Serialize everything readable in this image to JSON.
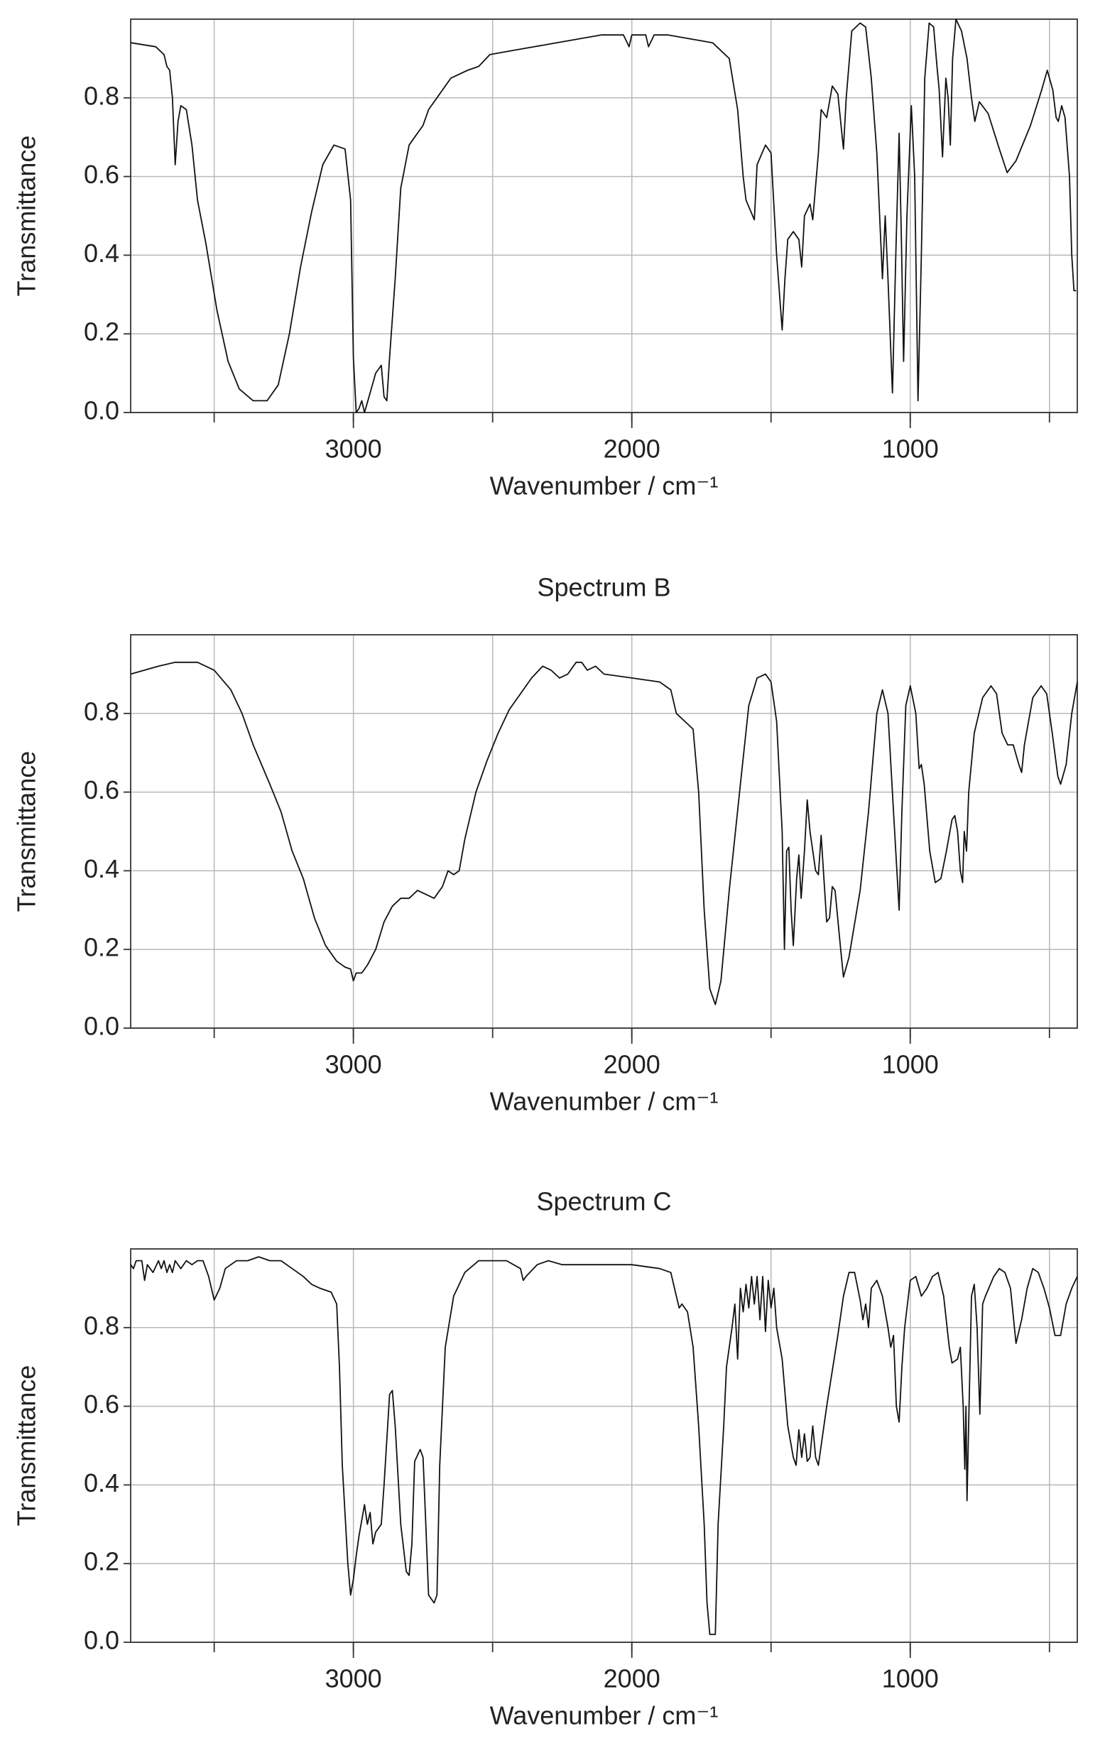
{
  "chart_data": [
    {
      "type": "line",
      "xlabel": "Wavenumber / cm⁻¹",
      "ylabel": "Transmittance",
      "color": "#111111",
      "grid": true,
      "xlim": [
        3800,
        400
      ],
      "ylim": [
        0,
        1
      ],
      "xticks": [
        3000,
        2000,
        1000
      ],
      "xgrid": [
        3500,
        3000,
        2500,
        2000,
        1500,
        1000,
        500
      ],
      "yticks": [
        {
          "value": 0,
          "label": "0.0"
        },
        0.2,
        0.4,
        0.6,
        0.8
      ],
      "x": [
        3800,
        3710,
        3680,
        3670,
        3660,
        3650,
        3640,
        3630,
        3620,
        3600,
        3580,
        3560,
        3530,
        3490,
        3450,
        3410,
        3360,
        3310,
        3270,
        3230,
        3190,
        3150,
        3110,
        3070,
        3030,
        3010,
        3000,
        2990,
        2980,
        2970,
        2960,
        2940,
        2920,
        2900,
        2890,
        2880,
        2870,
        2850,
        2830,
        2800,
        2780,
        2750,
        2730,
        2700,
        2670,
        2650,
        2620,
        2590,
        2550,
        2510,
        2430,
        2350,
        2270,
        2190,
        2110,
        2030,
        2010,
        2000,
        1950,
        1940,
        1920,
        1870,
        1790,
        1710,
        1650,
        1620,
        1600,
        1590,
        1560,
        1550,
        1520,
        1500,
        1480,
        1460,
        1450,
        1440,
        1420,
        1400,
        1390,
        1380,
        1360,
        1350,
        1330,
        1320,
        1300,
        1280,
        1260,
        1240,
        1230,
        1210,
        1180,
        1160,
        1140,
        1120,
        1100,
        1090,
        1080,
        1064,
        1052,
        1040,
        1032,
        1024,
        1012,
        996,
        984,
        972,
        960,
        948,
        932,
        916,
        904,
        896,
        884,
        872,
        864,
        856,
        848,
        836,
        816,
        796,
        780,
        768,
        752,
        720,
        680,
        652,
        620,
        568,
        528,
        508,
        488,
        476,
        468,
        456,
        444,
        428,
        420,
        412,
        404
      ],
      "values": [
        0.94,
        0.93,
        0.91,
        0.88,
        0.87,
        0.8,
        0.63,
        0.74,
        0.78,
        0.77,
        0.68,
        0.54,
        0.43,
        0.26,
        0.13,
        0.06,
        0.03,
        0.03,
        0.07,
        0.2,
        0.37,
        0.51,
        0.63,
        0.68,
        0.67,
        0.54,
        0.14,
        0.0,
        0.01,
        0.03,
        0.0,
        0.05,
        0.1,
        0.12,
        0.04,
        0.03,
        0.14,
        0.34,
        0.57,
        0.68,
        0.7,
        0.73,
        0.77,
        0.8,
        0.83,
        0.85,
        0.86,
        0.87,
        0.88,
        0.91,
        0.92,
        0.93,
        0.94,
        0.95,
        0.96,
        0.96,
        0.93,
        0.96,
        0.96,
        0.93,
        0.96,
        0.96,
        0.95,
        0.94,
        0.9,
        0.77,
        0.6,
        0.54,
        0.49,
        0.63,
        0.68,
        0.66,
        0.4,
        0.21,
        0.34,
        0.44,
        0.46,
        0.44,
        0.37,
        0.5,
        0.53,
        0.49,
        0.66,
        0.77,
        0.75,
        0.83,
        0.81,
        0.67,
        0.8,
        0.97,
        0.99,
        0.98,
        0.85,
        0.66,
        0.34,
        0.5,
        0.34,
        0.05,
        0.4,
        0.71,
        0.45,
        0.13,
        0.5,
        0.78,
        0.6,
        0.03,
        0.4,
        0.85,
        0.99,
        0.98,
        0.88,
        0.82,
        0.65,
        0.85,
        0.8,
        0.68,
        0.9,
        1.0,
        0.97,
        0.9,
        0.8,
        0.74,
        0.79,
        0.76,
        0.67,
        0.61,
        0.64,
        0.73,
        0.82,
        0.87,
        0.82,
        0.75,
        0.74,
        0.78,
        0.75,
        0.6,
        0.4,
        0.31,
        0.31
      ]
    },
    {
      "type": "line",
      "title": "Spectrum B",
      "xlabel": "Wavenumber / cm⁻¹",
      "ylabel": "Transmittance",
      "color": "#111111",
      "grid": true,
      "xlim": [
        3800,
        400
      ],
      "ylim": [
        0,
        1
      ],
      "xticks": [
        3000,
        2000,
        1000
      ],
      "xgrid": [
        3500,
        3000,
        2500,
        2000,
        1500,
        1000,
        500
      ],
      "yticks": [
        {
          "value": 0,
          "label": "0.0"
        },
        0.2,
        0.4,
        0.6,
        0.8
      ],
      "x": [
        3800,
        3700,
        3640,
        3560,
        3500,
        3440,
        3400,
        3360,
        3300,
        3260,
        3220,
        3180,
        3140,
        3100,
        3060,
        3030,
        3010,
        3000,
        2990,
        2970,
        2950,
        2920,
        2890,
        2860,
        2830,
        2800,
        2770,
        2740,
        2710,
        2680,
        2660,
        2640,
        2620,
        2600,
        2560,
        2520,
        2480,
        2440,
        2400,
        2360,
        2320,
        2290,
        2260,
        2230,
        2200,
        2180,
        2160,
        2130,
        2100,
        2000,
        1900,
        1860,
        1840,
        1810,
        1780,
        1760,
        1740,
        1720,
        1700,
        1680,
        1650,
        1610,
        1580,
        1550,
        1520,
        1500,
        1480,
        1460,
        1452,
        1444,
        1436,
        1428,
        1420,
        1408,
        1400,
        1392,
        1380,
        1370,
        1360,
        1340,
        1330,
        1320,
        1310,
        1300,
        1290,
        1280,
        1270,
        1250,
        1240,
        1220,
        1180,
        1150,
        1120,
        1100,
        1080,
        1060,
        1040,
        1030,
        1016,
        1000,
        980,
        968,
        960,
        950,
        930,
        910,
        890,
        870,
        850,
        840,
        830,
        820,
        812,
        806,
        798,
        790,
        770,
        740,
        710,
        690,
        670,
        650,
        630,
        610,
        600,
        590,
        560,
        530,
        510,
        490,
        470,
        460,
        440,
        420,
        400
      ],
      "values": [
        0.9,
        0.92,
        0.93,
        0.93,
        0.91,
        0.86,
        0.8,
        0.72,
        0.62,
        0.55,
        0.45,
        0.38,
        0.28,
        0.21,
        0.17,
        0.155,
        0.15,
        0.12,
        0.14,
        0.14,
        0.16,
        0.2,
        0.27,
        0.31,
        0.33,
        0.33,
        0.35,
        0.34,
        0.33,
        0.36,
        0.4,
        0.39,
        0.4,
        0.48,
        0.6,
        0.68,
        0.75,
        0.81,
        0.85,
        0.89,
        0.92,
        0.91,
        0.89,
        0.9,
        0.93,
        0.93,
        0.91,
        0.92,
        0.9,
        0.89,
        0.88,
        0.86,
        0.8,
        0.78,
        0.76,
        0.6,
        0.3,
        0.1,
        0.06,
        0.12,
        0.35,
        0.62,
        0.82,
        0.89,
        0.9,
        0.88,
        0.78,
        0.5,
        0.2,
        0.45,
        0.46,
        0.3,
        0.21,
        0.38,
        0.44,
        0.33,
        0.45,
        0.58,
        0.5,
        0.4,
        0.39,
        0.49,
        0.38,
        0.27,
        0.28,
        0.36,
        0.35,
        0.2,
        0.13,
        0.18,
        0.35,
        0.55,
        0.8,
        0.86,
        0.8,
        0.55,
        0.3,
        0.55,
        0.82,
        0.87,
        0.8,
        0.66,
        0.67,
        0.62,
        0.45,
        0.37,
        0.38,
        0.45,
        0.53,
        0.54,
        0.5,
        0.4,
        0.37,
        0.5,
        0.45,
        0.6,
        0.75,
        0.84,
        0.87,
        0.85,
        0.75,
        0.72,
        0.72,
        0.67,
        0.65,
        0.72,
        0.84,
        0.87,
        0.85,
        0.75,
        0.64,
        0.62,
        0.67,
        0.8,
        0.88
      ]
    },
    {
      "type": "line",
      "title": "Spectrum C",
      "xlabel": "Wavenumber / cm⁻¹",
      "ylabel": "Transmittance",
      "color": "#111111",
      "grid": true,
      "xlim": [
        3800,
        400
      ],
      "ylim": [
        0,
        1
      ],
      "xticks": [
        3000,
        2000,
        1000
      ],
      "xgrid": [
        3500,
        3000,
        2500,
        2000,
        1500,
        1000,
        500
      ],
      "yticks": [
        {
          "value": 0,
          "label": "0.0"
        },
        0.2,
        0.4,
        0.6,
        0.8
      ],
      "x": [
        3800,
        3790,
        3780,
        3760,
        3750,
        3740,
        3720,
        3700,
        3690,
        3680,
        3670,
        3660,
        3650,
        3640,
        3620,
        3600,
        3580,
        3560,
        3540,
        3520,
        3500,
        3480,
        3460,
        3420,
        3380,
        3340,
        3300,
        3260,
        3220,
        3180,
        3150,
        3120,
        3080,
        3060,
        3050,
        3040,
        3020,
        3010,
        3000,
        2990,
        2980,
        2960,
        2950,
        2940,
        2930,
        2920,
        2900,
        2890,
        2870,
        2860,
        2850,
        2830,
        2810,
        2800,
        2790,
        2780,
        2760,
        2750,
        2740,
        2730,
        2710,
        2700,
        2690,
        2670,
        2640,
        2600,
        2550,
        2500,
        2450,
        2400,
        2390,
        2380,
        2340,
        2300,
        2250,
        2200,
        2150,
        2100,
        2000,
        1900,
        1860,
        1840,
        1830,
        1820,
        1800,
        1780,
        1760,
        1740,
        1730,
        1720,
        1700,
        1690,
        1670,
        1660,
        1650,
        1640,
        1630,
        1620,
        1610,
        1600,
        1590,
        1580,
        1570,
        1560,
        1550,
        1540,
        1530,
        1520,
        1510,
        1500,
        1490,
        1480,
        1460,
        1440,
        1420,
        1410,
        1400,
        1390,
        1380,
        1370,
        1360,
        1350,
        1340,
        1330,
        1300,
        1260,
        1240,
        1220,
        1200,
        1180,
        1170,
        1160,
        1150,
        1140,
        1120,
        1100,
        1080,
        1070,
        1060,
        1050,
        1040,
        1030,
        1020,
        1000,
        980,
        960,
        940,
        920,
        900,
        880,
        860,
        850,
        830,
        820,
        810,
        804,
        800,
        796,
        790,
        780,
        770,
        760,
        750,
        740,
        730,
        700,
        680,
        660,
        640,
        620,
        600,
        580,
        560,
        540,
        520,
        500,
        480,
        460,
        440,
        420,
        400
      ],
      "values": [
        0.96,
        0.95,
        0.97,
        0.97,
        0.92,
        0.96,
        0.94,
        0.97,
        0.95,
        0.97,
        0.94,
        0.96,
        0.94,
        0.97,
        0.95,
        0.97,
        0.96,
        0.97,
        0.97,
        0.93,
        0.87,
        0.9,
        0.95,
        0.97,
        0.97,
        0.98,
        0.97,
        0.97,
        0.95,
        0.93,
        0.91,
        0.9,
        0.89,
        0.86,
        0.7,
        0.45,
        0.2,
        0.12,
        0.16,
        0.22,
        0.27,
        0.35,
        0.3,
        0.33,
        0.25,
        0.28,
        0.3,
        0.4,
        0.63,
        0.64,
        0.55,
        0.3,
        0.18,
        0.17,
        0.25,
        0.46,
        0.49,
        0.47,
        0.3,
        0.12,
        0.1,
        0.12,
        0.45,
        0.75,
        0.88,
        0.94,
        0.97,
        0.97,
        0.97,
        0.95,
        0.92,
        0.93,
        0.96,
        0.97,
        0.96,
        0.96,
        0.96,
        0.96,
        0.96,
        0.95,
        0.94,
        0.88,
        0.85,
        0.86,
        0.84,
        0.75,
        0.55,
        0.3,
        0.1,
        0.02,
        0.02,
        0.3,
        0.55,
        0.7,
        0.75,
        0.8,
        0.86,
        0.72,
        0.9,
        0.84,
        0.91,
        0.85,
        0.93,
        0.86,
        0.93,
        0.82,
        0.93,
        0.79,
        0.92,
        0.85,
        0.9,
        0.8,
        0.72,
        0.55,
        0.47,
        0.45,
        0.54,
        0.47,
        0.53,
        0.46,
        0.47,
        0.55,
        0.47,
        0.45,
        0.6,
        0.78,
        0.88,
        0.94,
        0.94,
        0.87,
        0.82,
        0.86,
        0.8,
        0.9,
        0.92,
        0.88,
        0.8,
        0.75,
        0.78,
        0.6,
        0.56,
        0.7,
        0.8,
        0.92,
        0.93,
        0.88,
        0.9,
        0.93,
        0.94,
        0.88,
        0.75,
        0.71,
        0.72,
        0.75,
        0.6,
        0.44,
        0.6,
        0.36,
        0.56,
        0.88,
        0.91,
        0.8,
        0.58,
        0.86,
        0.88,
        0.93,
        0.95,
        0.94,
        0.9,
        0.76,
        0.82,
        0.9,
        0.95,
        0.94,
        0.9,
        0.85,
        0.78,
        0.78,
        0.86,
        0.9,
        0.93
      ]
    }
  ]
}
